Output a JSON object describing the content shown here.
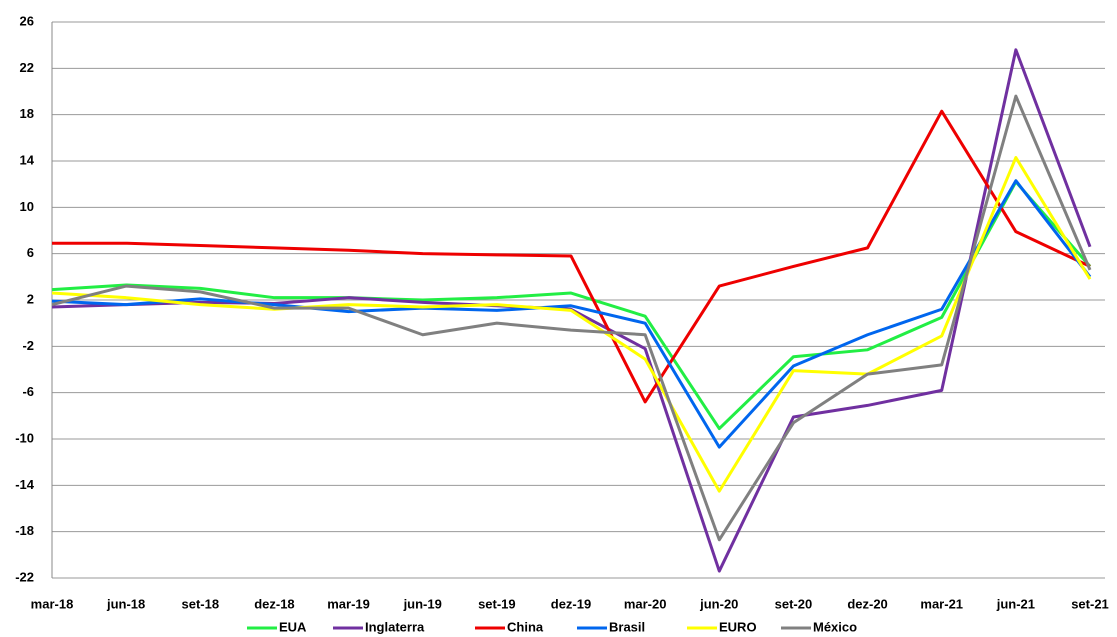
{
  "chart_data": {
    "type": "line",
    "categories": [
      "mar-18",
      "jun-18",
      "set-18",
      "dez-18",
      "mar-19",
      "jun-19",
      "set-19",
      "dez-19",
      "mar-20",
      "jun-20",
      "set-20",
      "dez-20",
      "mar-21",
      "jun-21",
      "set-21"
    ],
    "series": [
      {
        "name": "EUA",
        "color": "#22ee44",
        "values": [
          2.9,
          3.3,
          3.0,
          2.2,
          2.2,
          2.0,
          2.2,
          2.6,
          0.6,
          -9.1,
          -2.9,
          -2.3,
          0.5,
          12.2,
          4.9
        ]
      },
      {
        "name": "Inglaterra",
        "color": "#7030a0",
        "values": [
          1.4,
          1.6,
          1.8,
          1.7,
          2.2,
          1.8,
          1.5,
          1.2,
          -2.2,
          -21.4,
          -8.1,
          -7.1,
          -5.8,
          23.6,
          6.6
        ]
      },
      {
        "name": "China",
        "color": "#ee0000",
        "values": [
          6.9,
          6.9,
          6.7,
          6.5,
          6.3,
          6.0,
          5.9,
          5.8,
          -6.8,
          3.2,
          4.9,
          6.5,
          18.3,
          7.9,
          4.9
        ]
      },
      {
        "name": "Brasil",
        "color": "#0066ee",
        "values": [
          1.9,
          1.6,
          2.1,
          1.6,
          1.0,
          1.3,
          1.1,
          1.5,
          0.0,
          -10.7,
          -3.7,
          -1.0,
          1.2,
          12.3,
          4.0
        ]
      },
      {
        "name": "EURO",
        "color": "#ffff00",
        "values": [
          2.6,
          2.2,
          1.6,
          1.2,
          1.6,
          1.4,
          1.6,
          1.1,
          -3.1,
          -14.5,
          -4.1,
          -4.4,
          -1.1,
          14.3,
          3.8
        ]
      },
      {
        "name": "México",
        "color": "#808080",
        "values": [
          1.6,
          3.2,
          2.7,
          1.3,
          1.3,
          -1.0,
          0.0,
          -0.6,
          -1.0,
          -18.7,
          -8.6,
          -4.4,
          -3.6,
          19.6,
          4.6
        ]
      }
    ],
    "ylim": [
      -22,
      26
    ],
    "yticks": [
      -22,
      -18,
      -14,
      -10,
      -6,
      -2,
      2,
      6,
      10,
      14,
      18,
      22,
      26
    ],
    "grid": true,
    "legend": "bottom"
  }
}
